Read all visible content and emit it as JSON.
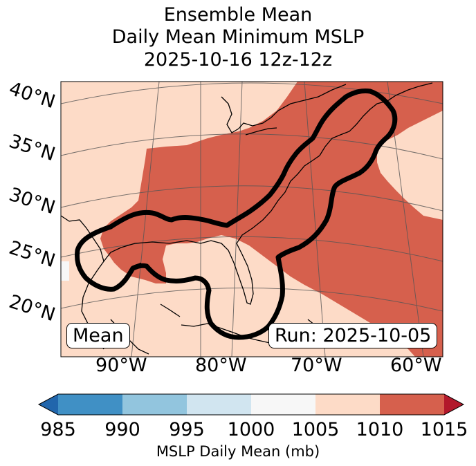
{
  "title": {
    "line1": "Ensemble Mean",
    "line2": "Daily Mean Minimum MSLP",
    "line3": "2025-10-16 12z-12z"
  },
  "lat_labels": [
    "40°N",
    "35°N",
    "30°N",
    "25°N",
    "20°N"
  ],
  "lon_labels": [
    "90°W",
    "80°W",
    "70°W",
    "60°W"
  ],
  "mean_box": "Mean",
  "run_box": "Run: 2025-10-05",
  "colorbar": {
    "ticks": [
      "985",
      "990",
      "995",
      "1000",
      "1005",
      "1010",
      "1015"
    ],
    "label": "MSLP Daily Mean (mb)",
    "colors": [
      "#4090c5",
      "#92c5de",
      "#d1e5f0",
      "#f7f7f7",
      "#fddbc7",
      "#d6604d"
    ],
    "under_color": "#2166ac",
    "over_color": "#b2182b"
  },
  "map_colors": {
    "light": "#fddbc7",
    "dark": "#d6604d",
    "white": "#f7f7f7"
  }
}
